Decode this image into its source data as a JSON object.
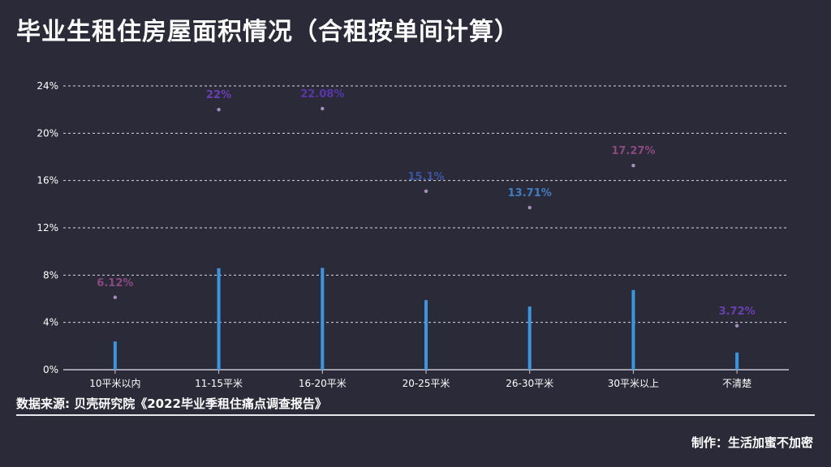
{
  "title": "毕业生租住房屋面积情况（合租按单间计算）",
  "source": "数据来源: 贝壳研究院《2022毕业季租住痛点调查报告》",
  "credit": "制作：生活加蜜不加密",
  "chart_data": {
    "type": "bar",
    "categories": [
      "10平米以内",
      "11-15平米",
      "16-20平米",
      "20-25平米",
      "26-30平米",
      "30平米以上",
      "不清楚"
    ],
    "values": [
      6.12,
      22,
      22.08,
      15.1,
      13.71,
      17.27,
      3.72
    ],
    "data_labels": [
      "6.12%",
      "22%",
      "22.08%",
      "15.1%",
      "13.71%",
      "17.27%",
      "3.72%"
    ],
    "label_colors": [
      "#8a4a80",
      "#6b3fb0",
      "#5a35a8",
      "#3c55a0",
      "#3d7fc2",
      "#8a4a80",
      "#6b3fb0"
    ],
    "dot_color": "#a98fc0",
    "bar_color": "#3a96de",
    "y_ticks": [
      "0%",
      "4%",
      "8%",
      "12%",
      "16%",
      "20%",
      "24%"
    ],
    "ylim": [
      0,
      24
    ],
    "grid": true
  }
}
